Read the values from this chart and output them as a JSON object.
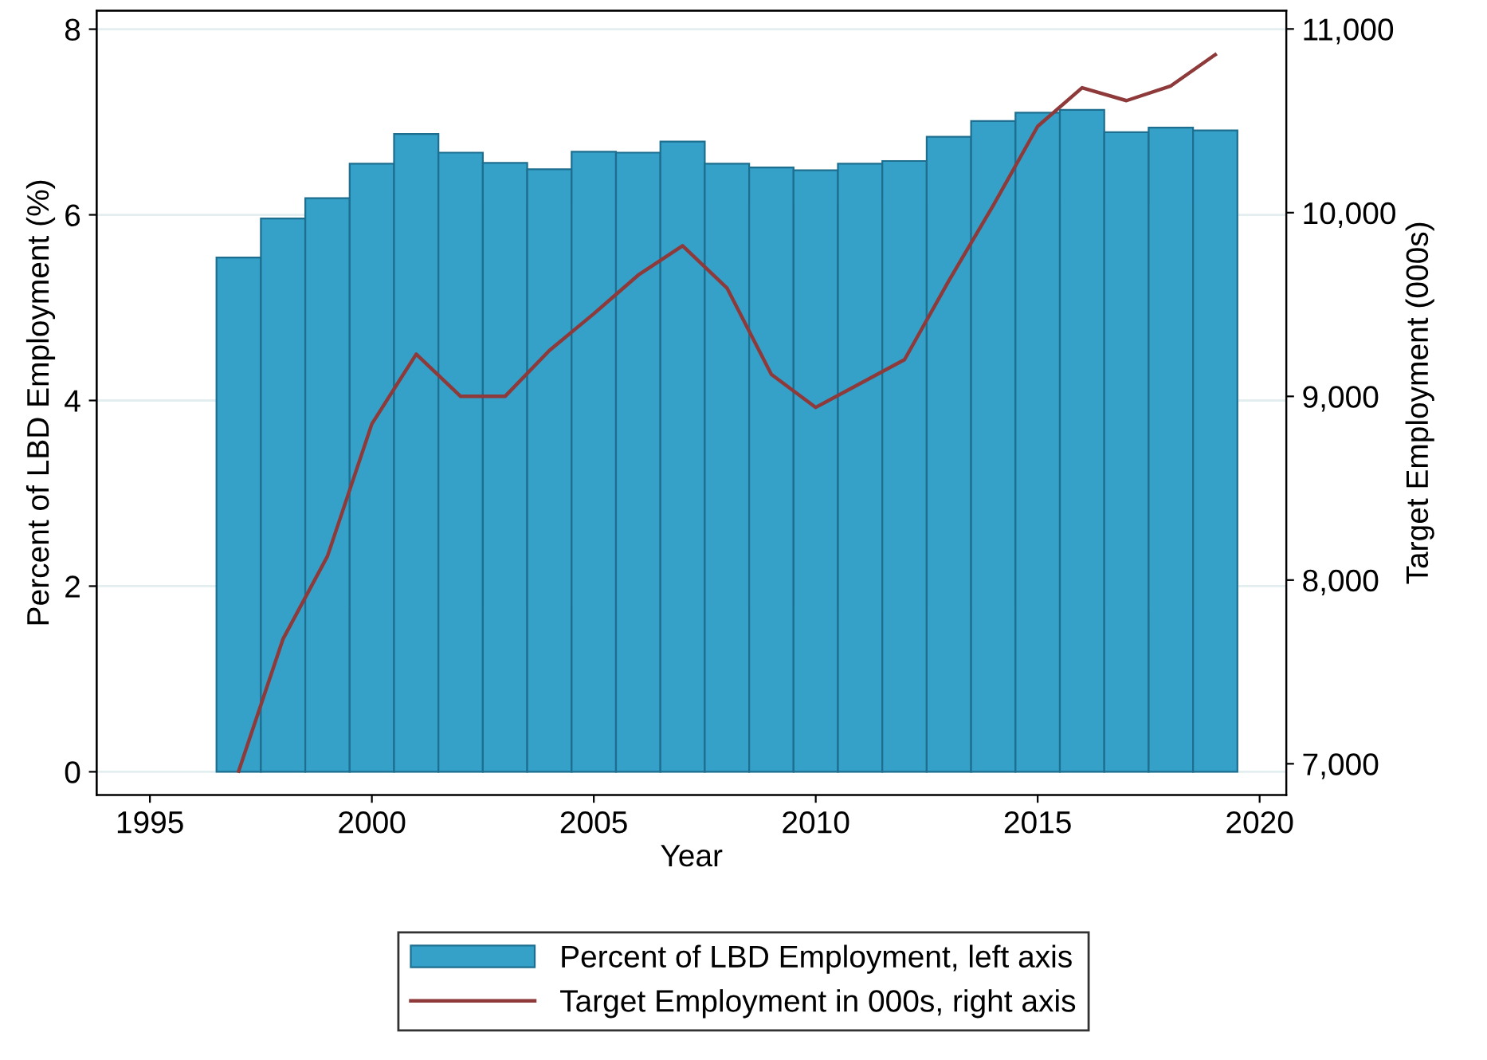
{
  "chart_data": {
    "type": "bar",
    "xlabel": "Year",
    "ylabel": "Percent of LBD Employment (%)",
    "y2label": "Target Employment (000s)",
    "x": [
      1997,
      1998,
      1999,
      2000,
      2001,
      2002,
      2003,
      2004,
      2005,
      2006,
      2007,
      2008,
      2009,
      2010,
      2011,
      2012,
      2013,
      2014,
      2015,
      2016,
      2017,
      2018,
      2019
    ],
    "series": [
      {
        "name": "Percent of LBD Employment, left axis",
        "color": "#35a0c8",
        "values": [
          5.54,
          5.96,
          6.18,
          6.55,
          6.87,
          6.67,
          6.56,
          6.49,
          6.68,
          6.67,
          6.79,
          6.55,
          6.51,
          6.48,
          6.55,
          6.58,
          6.84,
          7.01,
          7.1,
          7.13,
          6.89,
          6.94,
          6.91
        ]
      },
      {
        "name": "Target Employment in 000s, right axis",
        "type": "line",
        "axis": "y2",
        "color": "#8e3a3a",
        "values": [
          6960,
          7680,
          8130,
          8850,
          9230,
          9000,
          9000,
          9250,
          9450,
          9660,
          9820,
          9590,
          9120,
          8940,
          9070,
          9200,
          9630,
          10040,
          10470,
          10680,
          10610,
          10690,
          10860
        ]
      }
    ],
    "xlim": [
      1993.8,
      2020.6
    ],
    "xticks": [
      1995,
      2000,
      2005,
      2010,
      2015,
      2020
    ],
    "ylim": [
      -0.25,
      8.2
    ],
    "yticks": [
      0,
      2,
      4,
      6,
      8
    ],
    "y2lim": [
      6830,
      11100
    ],
    "y2ticks": [
      {
        "value": 7000,
        "label": "7,000"
      },
      {
        "value": 8000,
        "label": "8,000"
      },
      {
        "value": 9000,
        "label": "9,000"
      },
      {
        "value": 10000,
        "label": "10,000"
      },
      {
        "value": 11000,
        "label": "11,000"
      }
    ],
    "grid": "y",
    "legend": "bottom"
  }
}
